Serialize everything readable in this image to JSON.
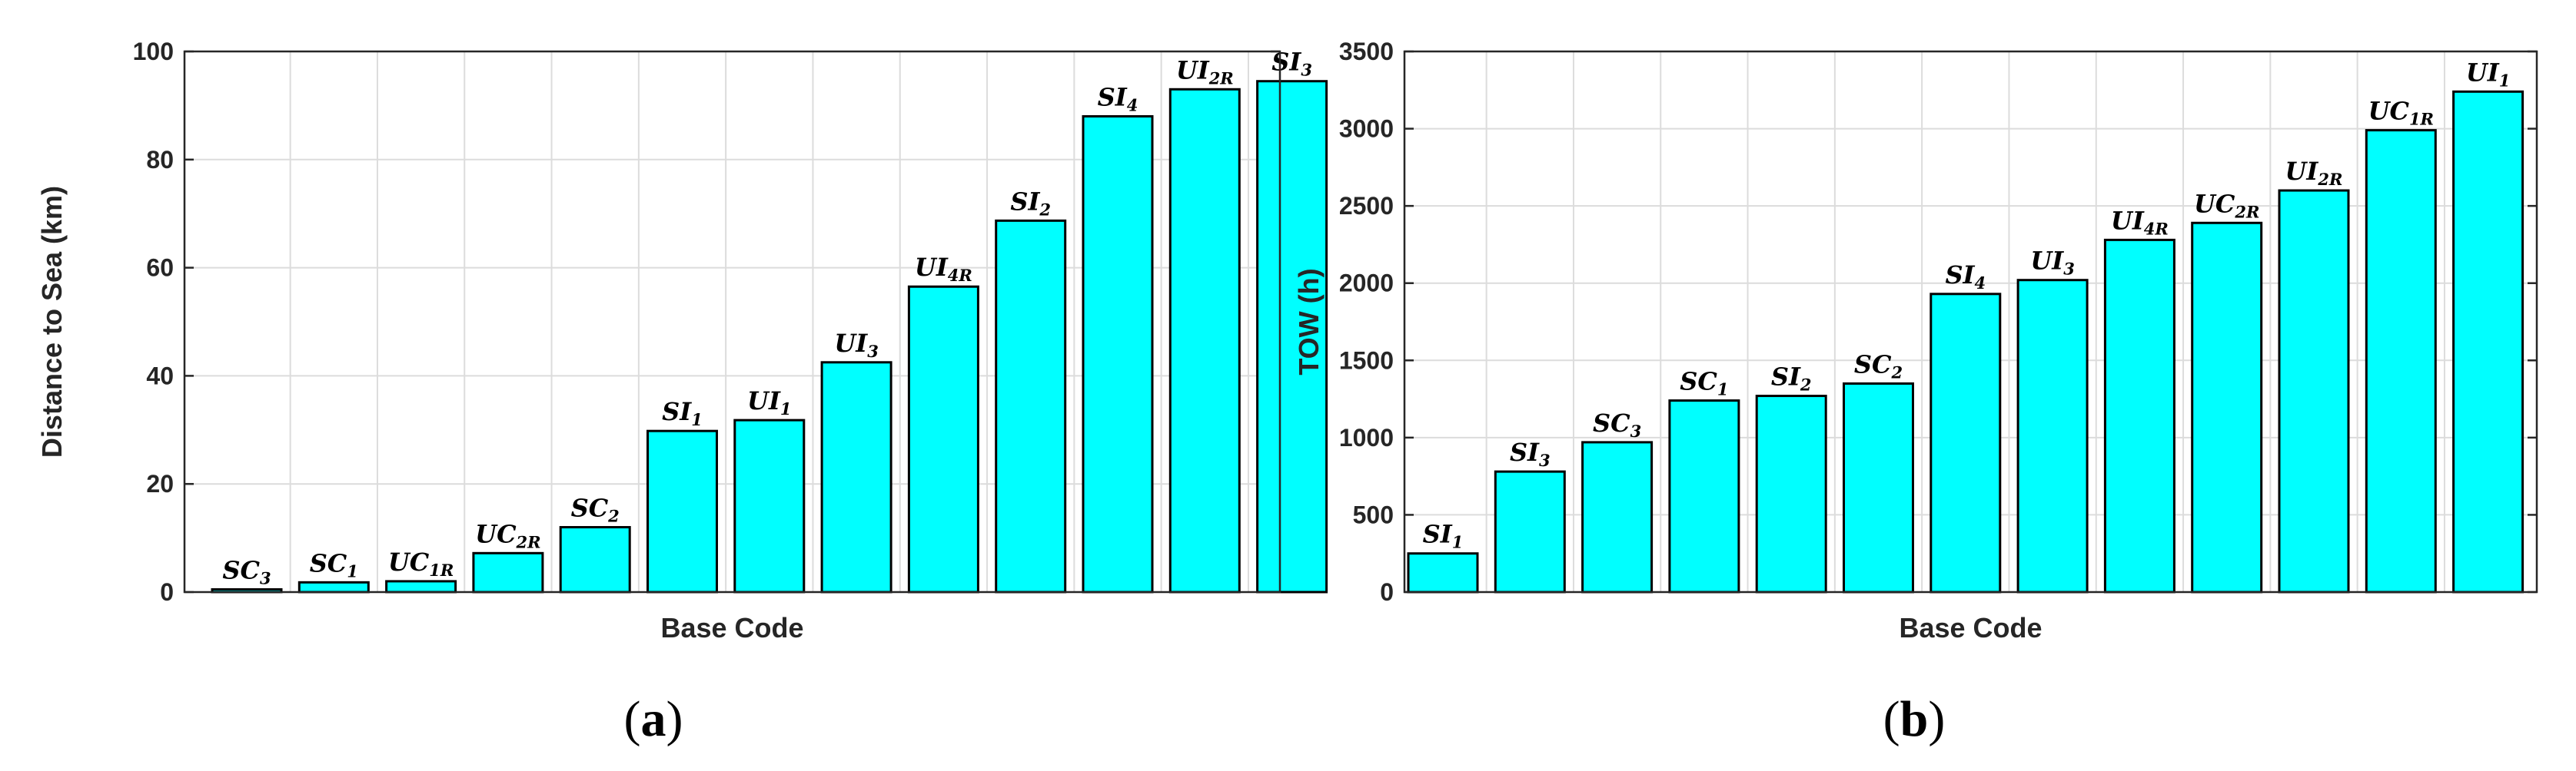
{
  "colors": {
    "bar_fill": "#00ffff",
    "bar_edge": "#000000"
  },
  "chart_data": [
    {
      "type": "bar",
      "panel_label": "(a)",
      "panel_letter": "a",
      "xlabel": "Base Code",
      "ylabel": "Distance to Sea (km)",
      "ylim": [
        0,
        100
      ],
      "yticks": [
        0,
        20,
        40,
        60,
        80,
        100
      ],
      "grid": true,
      "categories": [
        {
          "base": "SC",
          "sub": "3"
        },
        {
          "base": "SC",
          "sub": "1"
        },
        {
          "base": "UC",
          "sub": "1R"
        },
        {
          "base": "UC",
          "sub": "2R"
        },
        {
          "base": "SC",
          "sub": "2"
        },
        {
          "base": "SI",
          "sub": "1"
        },
        {
          "base": "UI",
          "sub": "1"
        },
        {
          "base": "UI",
          "sub": "3"
        },
        {
          "base": "UI",
          "sub": "4R"
        },
        {
          "base": "SI",
          "sub": "2"
        },
        {
          "base": "SI",
          "sub": "4"
        },
        {
          "base": "UI",
          "sub": "2R"
        },
        {
          "base": "SI",
          "sub": "3"
        }
      ],
      "values": [
        0.5,
        1.8,
        2.0,
        7.2,
        12.0,
        29.8,
        31.8,
        42.5,
        56.5,
        68.7,
        88.0,
        93.0,
        94.5
      ]
    },
    {
      "type": "bar",
      "panel_label": "(b)",
      "panel_letter": "b",
      "xlabel": "Base Code",
      "ylabel": "TOW (h)",
      "ylim": [
        0,
        3500
      ],
      "yticks": [
        0,
        500,
        1000,
        1500,
        2000,
        2500,
        3000,
        3500
      ],
      "grid": true,
      "categories": [
        {
          "base": "SI",
          "sub": "1"
        },
        {
          "base": "SI",
          "sub": "3"
        },
        {
          "base": "SC",
          "sub": "3"
        },
        {
          "base": "SC",
          "sub": "1"
        },
        {
          "base": "SI",
          "sub": "2"
        },
        {
          "base": "SC",
          "sub": "2"
        },
        {
          "base": "SI",
          "sub": "4"
        },
        {
          "base": "UI",
          "sub": "3"
        },
        {
          "base": "UI",
          "sub": "4R"
        },
        {
          "base": "UC",
          "sub": "2R"
        },
        {
          "base": "UI",
          "sub": "2R"
        },
        {
          "base": "UC",
          "sub": "1R"
        },
        {
          "base": "UI",
          "sub": "1"
        }
      ],
      "values": [
        250,
        780,
        970,
        1240,
        1270,
        1350,
        1930,
        2020,
        2280,
        2390,
        2600,
        2990,
        3240
      ]
    }
  ]
}
